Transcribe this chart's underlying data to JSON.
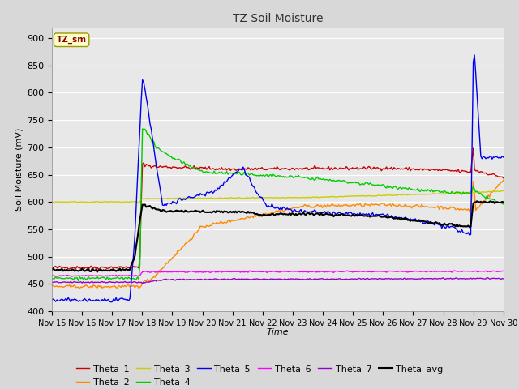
{
  "title": "TZ Soil Moisture",
  "xlabel": "Time",
  "ylabel": "Soil Moisture (mV)",
  "ylim": [
    400,
    920
  ],
  "yticks": [
    400,
    450,
    500,
    550,
    600,
    650,
    700,
    750,
    800,
    850,
    900
  ],
  "fig_bg_color": "#d8d8d8",
  "plot_bg_color": "#e8e8e8",
  "legend_label": "TZ_sm",
  "series_colors": {
    "Theta_1": "#cc0000",
    "Theta_2": "#ff8800",
    "Theta_3": "#cccc00",
    "Theta_4": "#00cc00",
    "Theta_5": "#0000ee",
    "Theta_6": "#ff00ff",
    "Theta_7": "#9900cc",
    "Theta_avg": "#000000"
  },
  "n_points": 360,
  "xtick_labels": [
    "Nov 15",
    "Nov 16",
    "Nov 17",
    "Nov 18",
    "Nov 19",
    "Nov 20",
    "Nov 21",
    "Nov 22",
    "Nov 23",
    "Nov 24",
    "Nov 25",
    "Nov 26",
    "Nov 27",
    "Nov 28",
    "Nov 29",
    "Nov 30"
  ],
  "xtick_positions": [
    0,
    24,
    48,
    72,
    96,
    120,
    144,
    168,
    192,
    216,
    240,
    264,
    288,
    312,
    336,
    360
  ]
}
